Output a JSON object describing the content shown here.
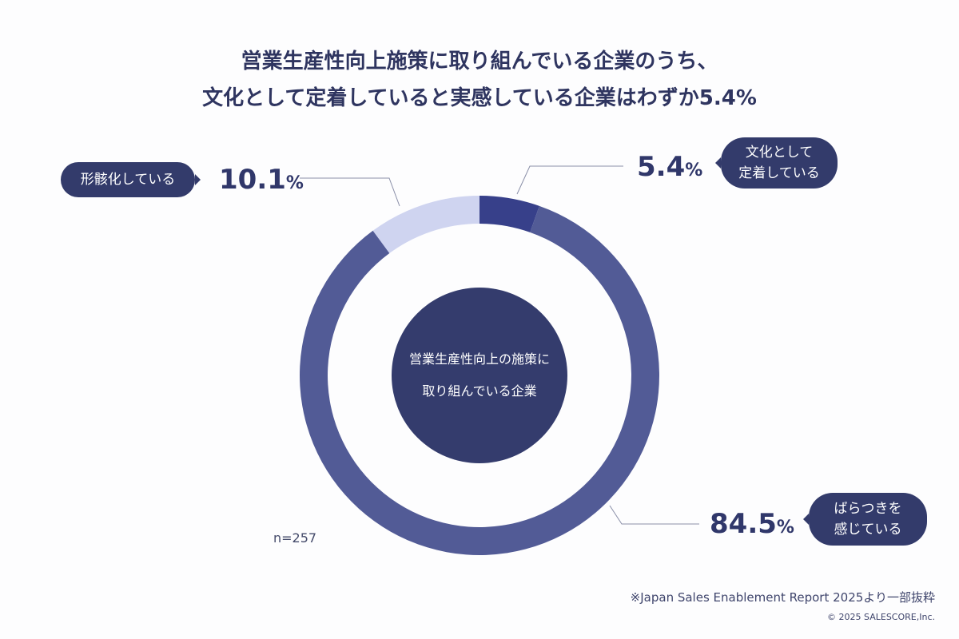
{
  "title_lines": [
    "営業生産性向上施策に取り組んでいる企業のうち、",
    "文化として定着していると実感している企業はわずか5.4%"
  ],
  "center_label": "営業生産性向上の施策に\n取り組んでいる企業",
  "sample_size": "n=257",
  "source": "※Japan Sales Enablement Report 2025より一部抜粋",
  "copyright": "© 2025 SALESCORE,Inc.",
  "chart_data": {
    "type": "pie",
    "donut": true,
    "categories": [
      "文化として定着している",
      "ばらつきを感じている",
      "形骸化している"
    ],
    "values": [
      5.4,
      84.5,
      10.1
    ],
    "unit": "%",
    "labels": [
      {
        "value": "5.4",
        "unit": "%",
        "text": "文化として\n定着している"
      },
      {
        "value": "84.5",
        "unit": "%",
        "text": "ばらつきを\n感じている"
      },
      {
        "value": "10.1",
        "unit": "%",
        "text": "形骸化している"
      }
    ],
    "colors": [
      "#37408a",
      "#525b96",
      "#cfd4f0"
    ],
    "center_color": "#343c6d"
  }
}
